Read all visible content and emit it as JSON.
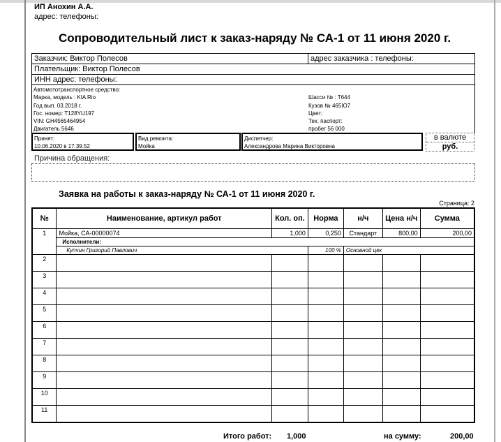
{
  "org": {
    "name": "ИП Анохин А.А.",
    "contacts": "адрес:  телефоны:"
  },
  "title": "Сопроводительный лист к заказ-наряду  № СА-1 от 11 июня 2020 г.",
  "customer": {
    "customer": "Заказчик: Виктор Полесов",
    "customer_address": "адрес заказчика :  телефоны:",
    "payer": "Плательщик:  Виктор Полесов",
    "inn": "ИНН    адрес:   телефоны:"
  },
  "vehicle": {
    "heading": "Автомототранспортное средство:",
    "model": "Марка, модель : KIA Rio",
    "year": "Год вып. 03.2018 г.",
    "plate": "Гос. номер:  T128YU197",
    "vin": "VIN: GH4565464954",
    "engine": "Двигатель 5646",
    "chassis": "Шасси № : T644",
    "body": "Кузов № 465IO7",
    "color": "Цвет:",
    "passport": "Тех. паспорт:",
    "mileage": "пробег 56 000"
  },
  "boxes": {
    "accepted_label": "Принят:",
    "accepted": "10.06.2020 в 17.39.52",
    "repair_label": "Вид ремонта:",
    "repair": "Мойка",
    "dispatcher_label": "Диспетчер:",
    "dispatcher": "Александрова Марина Викторовна",
    "currency_label": "в валюте",
    "currency": "руб."
  },
  "reason_label": "Причина обращения:",
  "subtitle": "Заявка на работы к заказ-наряду №  СА-1 от 11 июня 2020 г.",
  "page_label": "Страница: 2",
  "table": {
    "headers": [
      "№",
      "Наименование, артикул работ",
      "Кол. оп.",
      "Норма",
      "н/ч",
      "Цена н/ч",
      "Сумма"
    ],
    "row1": [
      "1",
      "Мойка, СА-00000074",
      "1,000",
      "0,250",
      "Стандарт",
      "800,00",
      "200,00"
    ],
    "executors_label": "Исполнители:",
    "executor": {
      "name": "Купчин Григорий Павлович",
      "share": "100 %",
      "workshop": "Основной цех"
    },
    "empty_rows": [
      "2",
      "3",
      "4",
      "5",
      "6",
      "7",
      "8",
      "9",
      "10",
      "11"
    ]
  },
  "totals": {
    "works_label": "Итого работ:",
    "works_qty": "1,000",
    "sum_label": "на сумму:",
    "sum": "200,00"
  }
}
